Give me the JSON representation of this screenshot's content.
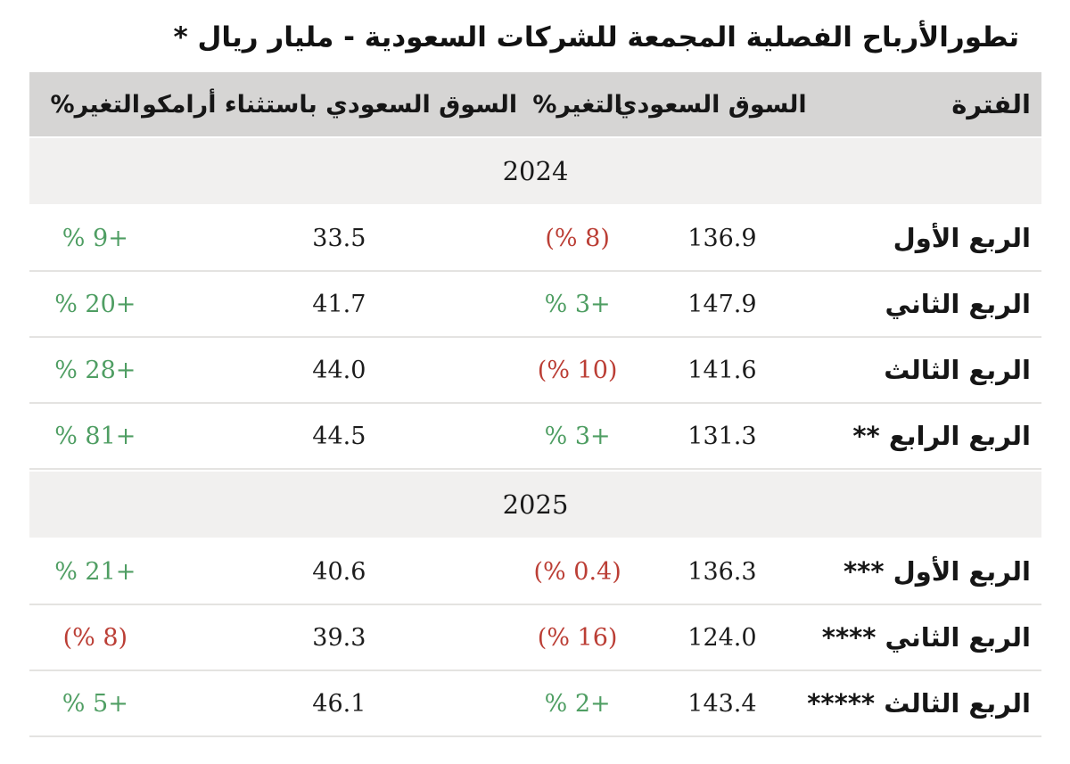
{
  "title": "تطورالأرباح الفصلية المجمعة للشركات السعودية - مليار ريال *",
  "colors": {
    "up": "#4f9e63",
    "down": "#bb3e35",
    "header_bg": "#d6d5d4",
    "year_band_bg": "#f1f0ef",
    "divider": "#e4e3e1"
  },
  "table": {
    "headers": {
      "period": "الفترة",
      "market": "السوق السعودي",
      "market_change": "التغير%",
      "ex_aramco": "السوق السعودي باستثناء أرامكو",
      "ex_aramco_change": "التغير%"
    },
    "rows": [
      {
        "type": "year",
        "label": "2024"
      },
      {
        "period": "الربع الأول",
        "market": "136.9",
        "market_change": "(% 8)",
        "market_change_tone": "down",
        "ex_aramco": "33.5",
        "ex_aramco_change": "% 9+",
        "ex_aramco_change_tone": "up"
      },
      {
        "period": "الربع الثاني",
        "market": "147.9",
        "market_change": "% 3+",
        "market_change_tone": "up",
        "ex_aramco": "41.7",
        "ex_aramco_change": "% 20+",
        "ex_aramco_change_tone": "up"
      },
      {
        "period": "الربع الثالث",
        "market": "141.6",
        "market_change": "(% 10)",
        "market_change_tone": "down",
        "ex_aramco": "44.0",
        "ex_aramco_change": "% 28+",
        "ex_aramco_change_tone": "up"
      },
      {
        "period": "الربع الرابع **",
        "market": "131.3",
        "market_change": "% 3+",
        "market_change_tone": "up",
        "ex_aramco": "44.5",
        "ex_aramco_change": "% 81+",
        "ex_aramco_change_tone": "up"
      },
      {
        "type": "year",
        "label": "2025"
      },
      {
        "period": "الربع الأول ***",
        "market": "136.3",
        "market_change": "(% 0.4)",
        "market_change_tone": "down",
        "ex_aramco": "40.6",
        "ex_aramco_change": "% 21+",
        "ex_aramco_change_tone": "up"
      },
      {
        "period": "الربع الثاني ****",
        "market": "124.0",
        "market_change": "(% 16)",
        "market_change_tone": "down",
        "ex_aramco": "39.3",
        "ex_aramco_change": "(% 8)",
        "ex_aramco_change_tone": "down"
      },
      {
        "period": "الربع الثالث *****",
        "market": "143.4",
        "market_change": "% 2+",
        "market_change_tone": "up",
        "ex_aramco": "46.1",
        "ex_aramco_change": "% 5+",
        "ex_aramco_change_tone": "up"
      }
    ]
  },
  "chart_data": {
    "type": "table",
    "title": "تطورالأرباح الفصلية المجمعة للشركات السعودية - مليار ريال *",
    "unit": "مليار ريال",
    "columns": [
      "الفترة",
      "السوق السعودي",
      "التغير%",
      "السوق السعودي باستثناء أرامكو",
      "التغير%"
    ],
    "sections": [
      {
        "year": "2024",
        "rows": [
          {
            "period": "الربع الأول",
            "market": 136.9,
            "market_change_pct": -8,
            "ex_aramco": 33.5,
            "ex_aramco_change_pct": 9
          },
          {
            "period": "الربع الثاني",
            "market": 147.9,
            "market_change_pct": 3,
            "ex_aramco": 41.7,
            "ex_aramco_change_pct": 20
          },
          {
            "period": "الربع الثالث",
            "market": 141.6,
            "market_change_pct": -10,
            "ex_aramco": 44.0,
            "ex_aramco_change_pct": 28
          },
          {
            "period": "الربع الرابع **",
            "market": 131.3,
            "market_change_pct": 3,
            "ex_aramco": 44.5,
            "ex_aramco_change_pct": 81
          }
        ]
      },
      {
        "year": "2025",
        "rows": [
          {
            "period": "الربع الأول ***",
            "market": 136.3,
            "market_change_pct": -0.4,
            "ex_aramco": 40.6,
            "ex_aramco_change_pct": 21
          },
          {
            "period": "الربع الثاني ****",
            "market": 124.0,
            "market_change_pct": -16,
            "ex_aramco": 39.3,
            "ex_aramco_change_pct": -8
          },
          {
            "period": "الربع الثالث *****",
            "market": 143.4,
            "market_change_pct": 2,
            "ex_aramco": 46.1,
            "ex_aramco_change_pct": 5
          }
        ]
      }
    ],
    "layout": {
      "direction": "rtl",
      "positive_color": "#4f9e63",
      "negative_color": "#bb3e35"
    }
  }
}
